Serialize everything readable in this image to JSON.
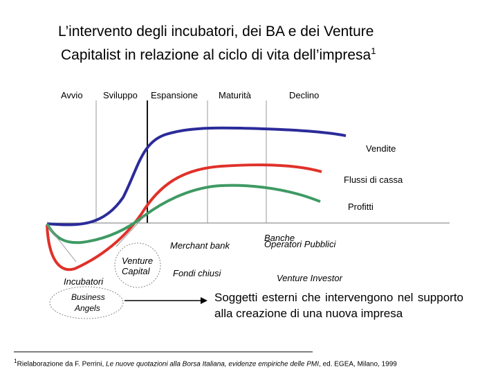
{
  "title": {
    "line1": "L’intervento degli incubatori, dei BA e dei Venture",
    "line2": "Capitalist in relazione al ciclo di vita dell’impresa",
    "footnote_marker": "1"
  },
  "phases": [
    "Avvio",
    "Sviluppo",
    "Espansione",
    "Maturità",
    "Declino"
  ],
  "curves": {
    "vendite": {
      "label": "Vendite",
      "color": "#2b2b9a"
    },
    "flussi": {
      "label": "Flussi di cassa",
      "color": "#e0312a"
    },
    "profitti": {
      "label": "Profitti",
      "color": "#3f9a63"
    }
  },
  "actors": {
    "incubatori": "Incubatori",
    "business_angels_line1": "Business",
    "business_angels_line2": "Angels",
    "venture_capital_line1": "Venture",
    "venture_capital_line2": "Capital",
    "merchant_bank": "Merchant bank",
    "fondi_chiusi": "Fondi chiusi",
    "banche": "Banche",
    "operatori_pubblici": "Operatori Pubblici",
    "venture_investor": "Venture Investor"
  },
  "soggetti_text": "Soggetti esterni che intervengono nel supporto alla creazione di una nuova impresa",
  "footnote": {
    "marker": "1",
    "prefix": "Rielaborazione da F. Perrini, ",
    "title_italic": "Le nuove quotazioni alla Borsa Italiana, evidenze empiriche delle PMI",
    "suffix": ", ed. EGEA, Milano, 1999"
  }
}
